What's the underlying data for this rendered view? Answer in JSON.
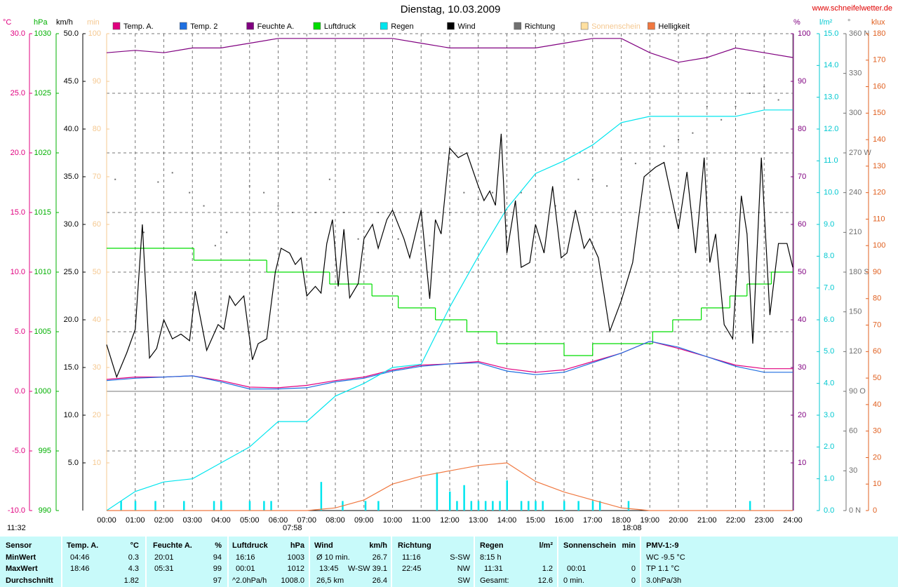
{
  "chart_data": {
    "type": "line",
    "title": "Dienstag, 10.03.2009",
    "source": "www.schneifelwetter.de",
    "day_length": "11:32",
    "sunrise": "07:58",
    "sunset": "18:08",
    "xlim": [
      0,
      24
    ],
    "xticks": [
      {
        "value": 0,
        "label": "00:00"
      },
      {
        "value": 1,
        "label": "01:00"
      },
      {
        "value": 2,
        "label": "02:00"
      },
      {
        "value": 3,
        "label": "03:00"
      },
      {
        "value": 4,
        "label": "04:00"
      },
      {
        "value": 5,
        "label": "05:00"
      },
      {
        "value": 6,
        "label": "06:00"
      },
      {
        "value": 7,
        "label": "07:00"
      },
      {
        "value": 8,
        "label": "08:00"
      },
      {
        "value": 9,
        "label": "09:00"
      },
      {
        "value": 10,
        "label": "10:00"
      },
      {
        "value": 11,
        "label": "11:00"
      },
      {
        "value": 12,
        "label": "12:00"
      },
      {
        "value": 13,
        "label": "13:00"
      },
      {
        "value": 14,
        "label": "14:00"
      },
      {
        "value": 15,
        "label": "15:00"
      },
      {
        "value": 16,
        "label": "16:00"
      },
      {
        "value": 17,
        "label": "17:00"
      },
      {
        "value": 18,
        "label": "18:00"
      },
      {
        "value": 19,
        "label": "19:00"
      },
      {
        "value": 20,
        "label": "20:00"
      },
      {
        "value": 21,
        "label": "21:00"
      },
      {
        "value": 22,
        "label": "22:00"
      },
      {
        "value": 23,
        "label": "23:00"
      },
      {
        "value": 24,
        "label": "24:00"
      }
    ],
    "grid": true,
    "axes": [
      {
        "unit": "°C",
        "color": "#e0007f",
        "lim": [
          -10,
          30
        ],
        "ticks": [
          {
            "value": -10,
            "label": "-10.0"
          },
          {
            "value": -5,
            "label": "-5.0"
          },
          {
            "value": 0,
            "label": "0.0"
          },
          {
            "value": 5,
            "label": "5.0"
          },
          {
            "value": 10,
            "label": "10.0"
          },
          {
            "value": 15,
            "label": "15.0"
          },
          {
            "value": 20,
            "label": "20.0"
          },
          {
            "value": 25,
            "label": "25.0"
          },
          {
            "value": 30,
            "label": "30.0"
          }
        ]
      },
      {
        "unit": "hPa",
        "color": "#00b000",
        "lim": [
          990,
          1030
        ],
        "ticks": [
          990,
          995,
          1000,
          1005,
          1010,
          1015,
          1020,
          1025,
          1030
        ]
      },
      {
        "unit": "km/h",
        "color": "#000000",
        "lim": [
          0,
          50
        ],
        "ticks": [
          {
            "value": 5,
            "label": "5.0"
          },
          {
            "value": 10,
            "label": "10.0"
          },
          {
            "value": 15,
            "label": "15.0"
          },
          {
            "value": 20,
            "label": "20.0"
          },
          {
            "value": 25,
            "label": "25.0"
          },
          {
            "value": 30,
            "label": "30.0"
          },
          {
            "value": 35,
            "label": "35.0"
          },
          {
            "value": 40,
            "label": "40.0"
          },
          {
            "value": 45,
            "label": "45.0"
          },
          {
            "value": 50,
            "label": "50.0"
          }
        ]
      },
      {
        "unit": "min",
        "color": "#f5c890",
        "lim": [
          0,
          100
        ],
        "ticks": [
          10,
          20,
          30,
          40,
          50,
          60,
          70,
          80,
          90,
          100
        ]
      },
      {
        "unit": "%",
        "color": "#800080",
        "lim": [
          0,
          100
        ],
        "ticks": [
          10,
          20,
          30,
          40,
          50,
          60,
          70,
          80,
          90,
          100
        ]
      },
      {
        "unit": "l/m²",
        "color": "#00c8d0",
        "lim": [
          0,
          15
        ],
        "ticks": [
          {
            "value": 0,
            "label": "0.0"
          },
          {
            "value": 1,
            "label": "1.0"
          },
          {
            "value": 2,
            "label": "2.0"
          },
          {
            "value": 3,
            "label": "3.0"
          },
          {
            "value": 4,
            "label": "4.0"
          },
          {
            "value": 5,
            "label": "5.0"
          },
          {
            "value": 6,
            "label": "6.0"
          },
          {
            "value": 7,
            "label": "7.0"
          },
          {
            "value": 8,
            "label": "8.0"
          },
          {
            "value": 9,
            "label": "9.0"
          },
          {
            "value": 10,
            "label": "10.0"
          },
          {
            "value": 11,
            "label": "11.0"
          },
          {
            "value": 12,
            "label": "12.0"
          },
          {
            "value": 13,
            "label": "13.0"
          },
          {
            "value": 14,
            "label": "14.0"
          },
          {
            "value": 15,
            "label": "15.0"
          }
        ]
      },
      {
        "unit": "°",
        "color": "#707070",
        "lim": [
          0,
          360
        ],
        "ticks": [
          {
            "value": 0,
            "label": "0 N"
          },
          30,
          60,
          {
            "value": 90,
            "label": "90 O"
          },
          120,
          150,
          {
            "value": 180,
            "label": "180 S"
          },
          210,
          240,
          {
            "value": 270,
            "label": "270 W"
          },
          300,
          330,
          {
            "value": 360,
            "label": "360 N"
          }
        ]
      },
      {
        "unit": "klux",
        "color": "#e06020",
        "lim": [
          0,
          180
        ],
        "ticks": [
          0,
          10,
          20,
          30,
          40,
          50,
          60,
          70,
          80,
          90,
          100,
          110,
          120,
          130,
          140,
          150,
          160,
          170,
          180
        ]
      }
    ],
    "series": [
      {
        "name": "Temp. A.",
        "color": "#e0007f",
        "axis": 0,
        "style": "line",
        "x": [
          0,
          1,
          2,
          3,
          4,
          5,
          6,
          7,
          8,
          9,
          10,
          11,
          12,
          13,
          14,
          15,
          16,
          17,
          18,
          19,
          20,
          21,
          22,
          23,
          24
        ],
        "values": [
          1.0,
          1.2,
          1.2,
          1.3,
          0.9,
          0.35,
          0.3,
          0.5,
          0.9,
          1.2,
          1.8,
          2.2,
          2.3,
          2.5,
          1.9,
          1.6,
          1.8,
          2.5,
          3.2,
          4.2,
          3.6,
          2.9,
          2.2,
          1.9,
          1.9
        ]
      },
      {
        "name": "Temp. 2",
        "color": "#1e6fe0",
        "axis": 0,
        "style": "line",
        "x": [
          0,
          1,
          2,
          3,
          4,
          5,
          6,
          7,
          8,
          9,
          10,
          11,
          12,
          13,
          14,
          15,
          16,
          17,
          18,
          19,
          20,
          21,
          22,
          23,
          24
        ],
        "values": [
          0.9,
          1.1,
          1.2,
          1.3,
          0.8,
          0.2,
          0.2,
          0.3,
          0.8,
          1.1,
          1.7,
          2.1,
          2.3,
          2.4,
          1.7,
          1.4,
          1.6,
          2.4,
          3.2,
          4.2,
          3.7,
          2.9,
          2.1,
          1.6,
          1.6
        ]
      },
      {
        "name": "Feuchte A.",
        "color": "#800080",
        "axis": 4,
        "style": "line",
        "x": [
          0,
          1,
          2,
          3,
          4,
          5,
          6,
          7,
          8,
          9,
          10,
          11,
          12,
          13,
          14,
          15,
          16,
          17,
          18,
          19,
          20,
          21,
          22,
          23,
          24
        ],
        "values": [
          96,
          96.5,
          96,
          97,
          97,
          98,
          99,
          99,
          99,
          99,
          99,
          98,
          97,
          97,
          97,
          97,
          98,
          99,
          99,
          96,
          94,
          95,
          97,
          96,
          95
        ]
      },
      {
        "name": "Luftdruck",
        "color": "#00dd00",
        "axis": 1,
        "style": "step",
        "x": [
          0,
          3.05,
          5.6,
          7.8,
          9.28,
          10.2,
          11.5,
          12.6,
          13.65,
          16.0,
          17.0,
          19.1,
          19.8,
          20.8,
          21.8,
          22.4,
          23.25
        ],
        "values": [
          1012,
          1011,
          1010,
          1009,
          1008,
          1007,
          1006,
          1005,
          1004,
          1003,
          1004,
          1005,
          1006,
          1007,
          1008,
          1009,
          1010
        ]
      },
      {
        "name": "Regen",
        "color": "#00e5ee",
        "axis": 5,
        "style": "line",
        "x": [
          0,
          1,
          2,
          3,
          4,
          5,
          6,
          7,
          8,
          9,
          10,
          11,
          12,
          13,
          14,
          15,
          16,
          17,
          18,
          19,
          20,
          21,
          22,
          23,
          24
        ],
        "values": [
          0,
          0.6,
          0.9,
          1.0,
          1.5,
          2.0,
          2.8,
          2.8,
          3.6,
          4.0,
          4.5,
          4.6,
          6.4,
          8.0,
          9.5,
          10.6,
          11.0,
          11.5,
          12.2,
          12.4,
          12.4,
          12.4,
          12.4,
          12.6,
          12.6
        ]
      },
      {
        "name": "Wind",
        "color": "#000000",
        "axis": 2,
        "style": "line",
        "x": [
          0.0,
          0.35,
          0.7,
          1.0,
          1.25,
          1.5,
          1.75,
          2.0,
          2.3,
          2.6,
          2.9,
          3.1,
          3.5,
          3.9,
          4.1,
          4.3,
          4.5,
          4.8,
          5.1,
          5.3,
          5.6,
          5.9,
          6.1,
          6.4,
          6.6,
          6.8,
          7.0,
          7.3,
          7.5,
          7.7,
          7.9,
          8.1,
          8.3,
          8.5,
          8.8,
          9.0,
          9.3,
          9.5,
          9.8,
          10.0,
          10.4,
          10.6,
          10.8,
          11.0,
          11.3,
          11.5,
          11.7,
          12.0,
          12.3,
          12.6,
          13.0,
          13.2,
          13.4,
          13.6,
          13.8,
          14.0,
          14.3,
          14.5,
          14.8,
          15.0,
          15.3,
          15.6,
          15.9,
          16.1,
          16.4,
          16.7,
          16.9,
          17.2,
          17.6,
          18.0,
          18.4,
          18.8,
          19.2,
          19.5,
          20.0,
          20.3,
          20.6,
          20.9,
          21.1,
          21.3,
          21.6,
          21.9,
          22.2,
          22.4,
          22.6,
          22.9,
          23.2,
          23.5,
          23.8,
          24.0
        ],
        "values": [
          17.4,
          14,
          16.5,
          19,
          30,
          16,
          17,
          20,
          18,
          18.5,
          17.8,
          23,
          16.8,
          19.5,
          19,
          22.5,
          21.5,
          22.5,
          15.8,
          17.5,
          18,
          25,
          27.5,
          27,
          25.8,
          26.5,
          22.5,
          23.5,
          22.8,
          28,
          30.5,
          23.5,
          29.5,
          22.3,
          23.8,
          28.5,
          30,
          27.5,
          30.5,
          31.5,
          28.5,
          26.5,
          29,
          31.5,
          22.2,
          30.5,
          29,
          38,
          37,
          37.5,
          34,
          32.5,
          33.5,
          32,
          39.5,
          27,
          32.5,
          25.5,
          26,
          30,
          27,
          34,
          26.5,
          27,
          31.5,
          27.5,
          28.5,
          26.5,
          18.8,
          22,
          26,
          35,
          36,
          36.5,
          29.5,
          35.5,
          27,
          37,
          26,
          29,
          19.5,
          18,
          33,
          29,
          17.5,
          37,
          20.5,
          28,
          28,
          25.5
        ]
      },
      {
        "name": "Richtung",
        "color": "#707070",
        "axis": 6,
        "style": "dots",
        "x": [
          0.3,
          1.3,
          1.8,
          2.3,
          2.9,
          3.4,
          3.8,
          4.2,
          5.0,
          5.5,
          6.0,
          6.5,
          7.3,
          7.8,
          8.3,
          8.8,
          9.5,
          10.2,
          11.3,
          12.0,
          12.5,
          13.0,
          13.5,
          14.0,
          14.5,
          15.0,
          15.7,
          16.5,
          17.0,
          17.5,
          18.0,
          18.5,
          19.0,
          19.5,
          20.0,
          20.5,
          21.0,
          21.5,
          22.0,
          22.5,
          23.0,
          23.5
        ],
        "values": [
          250,
          210,
          248,
          255,
          240,
          230,
          200,
          210,
          245,
          240,
          230,
          225,
          225,
          250,
          225,
          205,
          225,
          205,
          200,
          225,
          240,
          235,
          240,
          215,
          240,
          210,
          230,
          250,
          250,
          245,
          265,
          262,
          262,
          275,
          280,
          285,
          305,
          295,
          305,
          315,
          320,
          310
        ]
      },
      {
        "name": "Sonnenschein",
        "color": "#ffe0a0",
        "axis": 3,
        "style": "line",
        "x": [],
        "values": []
      },
      {
        "name": "Helligkeit",
        "color": "#f07840",
        "axis": 7,
        "style": "line",
        "x": [
          0,
          1,
          2,
          3,
          4,
          5,
          6,
          7,
          8,
          9,
          10,
          11,
          12,
          13,
          14,
          15,
          16,
          17,
          18,
          19,
          20,
          21,
          22,
          23,
          24
        ],
        "values": [
          0,
          0,
          0,
          0,
          0,
          0,
          0,
          0,
          1,
          4,
          10,
          13,
          15,
          17,
          18,
          11,
          7,
          4,
          1,
          0,
          0,
          0,
          0,
          0,
          0
        ]
      },
      {
        "color": "#00e5ee",
        "axis": 5,
        "style": "bars",
        "x": [
          0.5,
          1.0,
          1.7,
          2.7,
          3.75,
          4.0,
          5.0,
          5.5,
          5.75,
          7.5,
          8.25,
          9.05,
          9.5,
          11.55,
          12.0,
          12.25,
          12.5,
          12.75,
          13.0,
          13.25,
          13.5,
          13.75,
          14.0,
          14.5,
          14.75,
          15.0,
          15.25,
          16.0,
          16.5,
          17.0,
          17.25,
          18.25,
          22.5
        ],
        "values": [
          0.3,
          0.3,
          0.3,
          0.3,
          0.3,
          0.3,
          0.3,
          0.3,
          0.3,
          0.9,
          0.3,
          0.3,
          0.3,
          1.2,
          0.6,
          0.3,
          0.8,
          0.3,
          0.3,
          0.3,
          0.3,
          0.3,
          0.95,
          0.3,
          0.3,
          0.3,
          0.3,
          0.3,
          0.3,
          0.3,
          0.3,
          0.3,
          0.3
        ]
      }
    ]
  },
  "summary_table": {
    "rows": [
      [
        "Sensor",
        "Temp. A.",
        "°C",
        "Feuchte A.",
        "%",
        "Luftdruck",
        "hPa",
        "Wind",
        "km/h",
        "Richtung",
        "Regen",
        "l/m²",
        "Sonnenschein",
        "min",
        "PMV-1:-9"
      ],
      [
        "MinWert",
        "04:46",
        "0.3",
        "20:01",
        "94",
        "16:16",
        "1003",
        "Ø 10 min.",
        "26.7",
        "11:16",
        "S-SW",
        "8:15 h",
        "WC -9.5 °C"
      ],
      [
        "MaxWert",
        "18:46",
        "4.3",
        "05:31",
        "99",
        "00:01",
        "1012",
        "13:45",
        "W-SW 39.1",
        "22:45",
        "NW",
        "11:31",
        "1.2",
        "00:01",
        "0",
        "TP 1.1 °C"
      ],
      [
        "Durchschnitt",
        "1.82",
        "97",
        "^2.0hPa/h",
        "1008.0",
        "26,5 km",
        "26.4",
        "SW",
        "Gesamt:",
        "12.6",
        "0 min.",
        "0",
        "3.0hPa/3h"
      ]
    ]
  }
}
